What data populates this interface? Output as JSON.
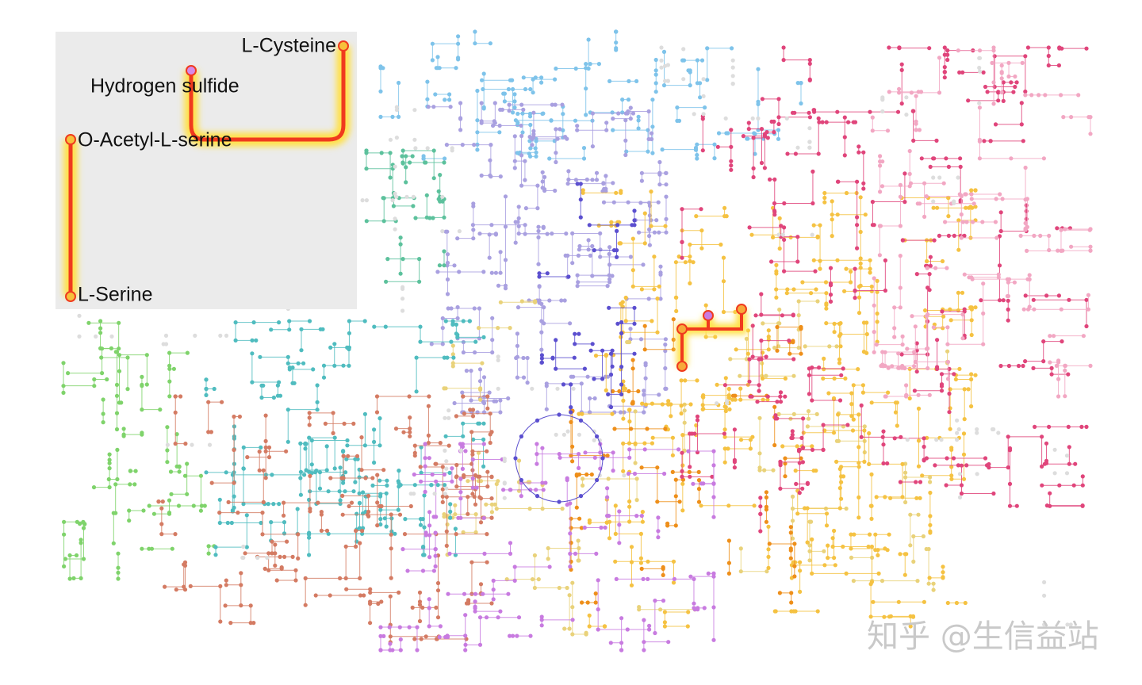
{
  "inset": {
    "nodes": [
      "L-Cysteine",
      "Hydrogen sulfide",
      "O-Acetyl-L-serine",
      "L-Serine"
    ]
  },
  "watermark": "知乎 @生信益站"
}
